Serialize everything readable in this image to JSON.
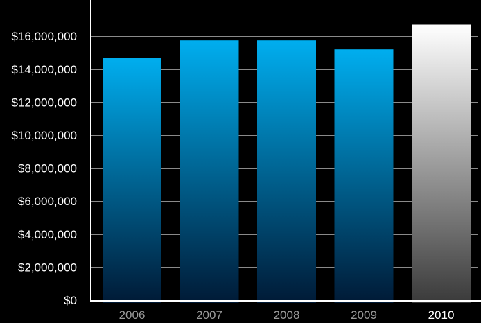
{
  "chart_data": {
    "type": "bar",
    "title": "",
    "xlabel": "",
    "ylabel": "",
    "categories": [
      "2006",
      "2007",
      "2008",
      "2009",
      "2010"
    ],
    "values": [
      14700000,
      15750000,
      15750000,
      15200000,
      16700000
    ],
    "highlight_category": "2010",
    "ylim": [
      0,
      18000000
    ],
    "yticks": [
      0,
      2000000,
      4000000,
      6000000,
      8000000,
      10000000,
      12000000,
      14000000,
      16000000
    ],
    "ytick_labels": [
      "$0",
      "$2,000,000",
      "$4,000,000",
      "$6,000,000",
      "$8,000,000",
      "$10,000,000",
      "$12,000,000",
      "$14,000,000",
      "$16,000,000"
    ],
    "grid": true,
    "legend": "none"
  },
  "colors": {
    "background": "#000000",
    "bar_top": "#00aeef",
    "bar_bottom": "#001a36",
    "highlight_top": "#ffffff",
    "highlight_bottom": "#3a3a3a",
    "grid": "#8a8a8a",
    "axis": "#ffffff",
    "tick_text": "#ffffff",
    "category_text": "#9a9a9a",
    "highlight_text": "#ffffff"
  }
}
